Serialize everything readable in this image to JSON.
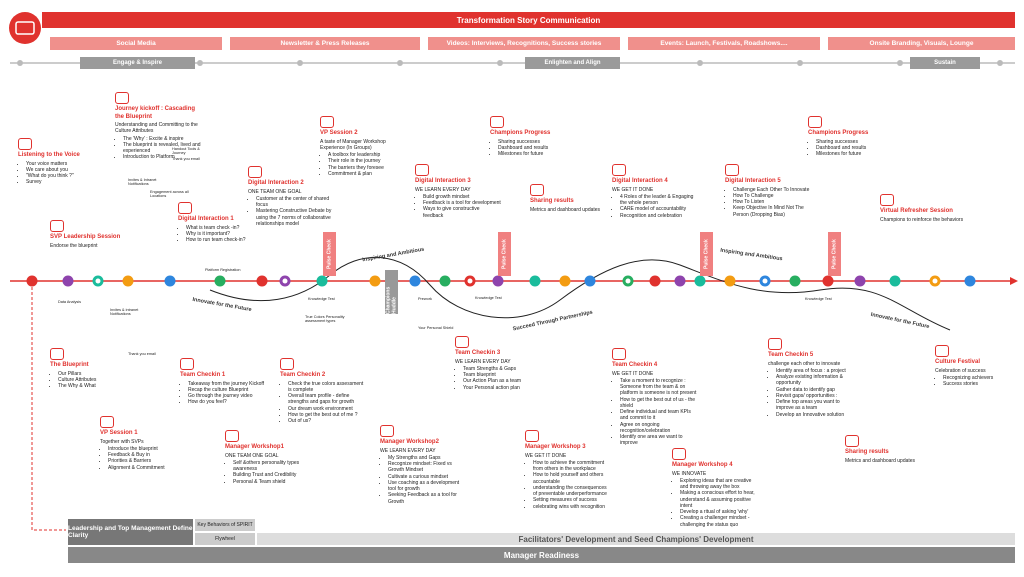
{
  "header": {
    "title": "Transformation Story Communication"
  },
  "channels": [
    "Social Media",
    "Newsletter & Press Releases",
    "Videos: Interviews, Recognitions, Success stories",
    "Events: Launch, Festivals, Roadshows....",
    "Onsite Branding, Visuals, Lounge"
  ],
  "phases": [
    "Engage & Inspire",
    "Enlighten and Align",
    "Sustain"
  ],
  "blocks": [
    {
      "title": "Listening to the Voice",
      "items": [
        "Your voice matters",
        "We care about you",
        "\"What do you think ?\"",
        "Survey"
      ]
    },
    {
      "title": "Journey kickoff : Cascading the Blueprint",
      "subtitle": "Understanding and Committing to the Culture Attributes",
      "items": [
        "The 'Why' : Excite & inspire",
        "The blueprint is revealed, lived and experienced",
        "Introduction to Platform"
      ]
    },
    {
      "title": "SVP Leadership Session",
      "subtitle": "Endorse the blueprint"
    },
    {
      "title": "Digital Interaction 1",
      "items": [
        "What is team check -in?",
        "Why is it important?",
        "How to run team check-in?"
      ]
    },
    {
      "title": "Digital Interaction 2",
      "subtitle": "ONE TEAM ONE GOAL",
      "items": [
        "Customer at the center of shared focus",
        "Mastering Constructive Debate by using the 7 norms of collaborative relationships model"
      ]
    },
    {
      "title": "VP Session 2",
      "subtitle": "A taste of Manager Workshop Experience (In Groups)",
      "items": [
        "A toolbox for leadership",
        "Their role in the journey",
        "The barriers they foresee",
        "Commitment & plan"
      ]
    },
    {
      "title": "Digital Interaction 3",
      "subtitle": "WE LEARN EVERY DAY",
      "items": [
        "Build growth mindset",
        "Feedback is a tool for development",
        "Ways to give constructive feedback"
      ]
    },
    {
      "title": "Champions Progress",
      "items": [
        "Sharing successes",
        "Dashboard and results",
        "Milestones for future"
      ]
    },
    {
      "title": "Sharing results",
      "subtitle": "Metrics and dashboard updates"
    },
    {
      "title": "Digital Interaction 4",
      "subtitle": "WE GET IT DONE",
      "items": [
        "4 Roles of the leader & Engaging the whole person",
        "CARE model of accountability",
        "Recognition and celebration"
      ]
    },
    {
      "title": "Digital Interaction 5",
      "items": [
        "Challenge Each Other To Innovate",
        "How To Challenge",
        "How To Listen",
        "Keep Objective In Mind Not The Person (Dropping Bias)"
      ]
    },
    {
      "title": "Champions Progress",
      "items": [
        "Sharing successes",
        "Dashboard and results",
        "Milestones for future"
      ]
    },
    {
      "title": "Virtual Refresher Session",
      "subtitle": "Champions to reinforce the behaviors"
    },
    {
      "title": "The Blueprint",
      "items": [
        "Our Pillars",
        "Culture Attributes",
        "The Why & What"
      ]
    },
    {
      "title": "VP Session 1",
      "subtitle": "Together with SVPs",
      "items": [
        "Introduce the blueprint",
        "Feedback & Buy in",
        "Priorities & Barriers",
        "Alignment & Commitment"
      ]
    },
    {
      "title": "Team Checkin 1",
      "items": [
        "Takeaway from the journey Kickoff",
        "Recap the culture Blueprint",
        "Go through the journey video",
        "How do you feel?"
      ]
    },
    {
      "title": "Team Checkin 2",
      "items": [
        "Check the true colors assessment is complete",
        "Overall team profile - define strengths and gaps for growth",
        "Our dream work environment",
        "How to get the best out of me ?",
        "Out of us?"
      ]
    },
    {
      "title": "Manager Workshop1",
      "subtitle": "ONE TEAM ONE GOAL",
      "items": [
        "Self &others personality types awareness",
        "Building Trust and Credibility",
        "Personal & Team shield"
      ]
    },
    {
      "title": "Team Checkin 3",
      "subtitle": "WE LEARN EVERY DAY",
      "items": [
        "Team Strengths & Gaps",
        "Team blueprint",
        "Our Action Plan as a team",
        "Your Personal action plan"
      ]
    },
    {
      "title": "Manager Workshop2",
      "subtitle": "WE LEARN EVERY DAY",
      "items": [
        "My Strengths and Gaps",
        "Recognize mindset: Fixed vs Growth Mindset",
        "Cultivate a curious mindset",
        "Use coaching as a development tool for growth",
        "Seeking Feedback as a tool for Growth"
      ]
    },
    {
      "title": "Team Checkin 4",
      "subtitle": "WE GET IT DONE",
      "items": [
        "Take a moment to recognize : Someone from the team & on platform is someone is not present",
        "How to get the best out of us - the shield",
        "Define individual and team KPIs and commit to it",
        "Agree on ongoing recognition/celebration",
        "Identify one area we want to improve"
      ]
    },
    {
      "title": "Manager Workshop 3",
      "subtitle": "WE GET IT DONE",
      "items": [
        "How to achieve the commitment from others in the workplace",
        "How to hold yourself and others accountable",
        "understanding the consequences of preventable underperformance",
        "Setting measures of success",
        "celebrating wins with recognition"
      ]
    },
    {
      "title": "Team Checkin 5",
      "subtitle": "challenge each other to innovate",
      "items": [
        "Identify area of focus : a project",
        "Analyze existing information & opportunity",
        "Gather data to identify gap",
        "Revisit gaps/ opportunities :",
        "Define top areas you want to improve as a team",
        "Develop an Innovative solution"
      ]
    },
    {
      "title": "Manager Workshop 4",
      "subtitle": "WE INNOVATE",
      "items": [
        "Exploring ideas that are creative and throwing away the box",
        "Making a conscious effort to hear, understand & assuming positive intent",
        "Develop a ritual of asking 'why'",
        "Creating a challenger mindset - challenging the status quo"
      ]
    },
    {
      "title": "Sharing results",
      "subtitle": "Metrics and dashboard updates"
    },
    {
      "title": "Culture Festival",
      "subtitle": "Celebration of success",
      "items": [
        "Recognizing achievers",
        "Success stories"
      ]
    }
  ],
  "markers": {
    "pulse_check": [
      "Pulse Check",
      "Pulse Check",
      "Pulse Check",
      "Pulse Check"
    ],
    "champions_huddle": "Champions Huddle"
  },
  "curve_labels": [
    "Inspiring and Ambitious",
    "Innovate for the Future",
    "Succeed Through Partnerships",
    "Inspiring and Ambitious",
    "Innovate for the Future"
  ],
  "notes": [
    "Handout Tools & Journey",
    "Thank you email",
    "Invites & Intranet Notifications",
    "Engagement across all Locations",
    "Platform Registration",
    "Data Analysis",
    "Invites & intranet Notifications",
    "Thank you email",
    "True Colors Personality assessment types",
    "Prework",
    "Your Personal Shield",
    "Knowledge Test",
    "Knowledge Test",
    "Knowledge Test"
  ],
  "footer": {
    "leadership": "Leadership and Top Management Define Clarity",
    "behaviors": "Key Behaviors of SPIRIT",
    "flywheel": "Flywheel",
    "development": "Facilitators' Development and Seed Champions' Development",
    "readiness": "Manager Readiness"
  }
}
